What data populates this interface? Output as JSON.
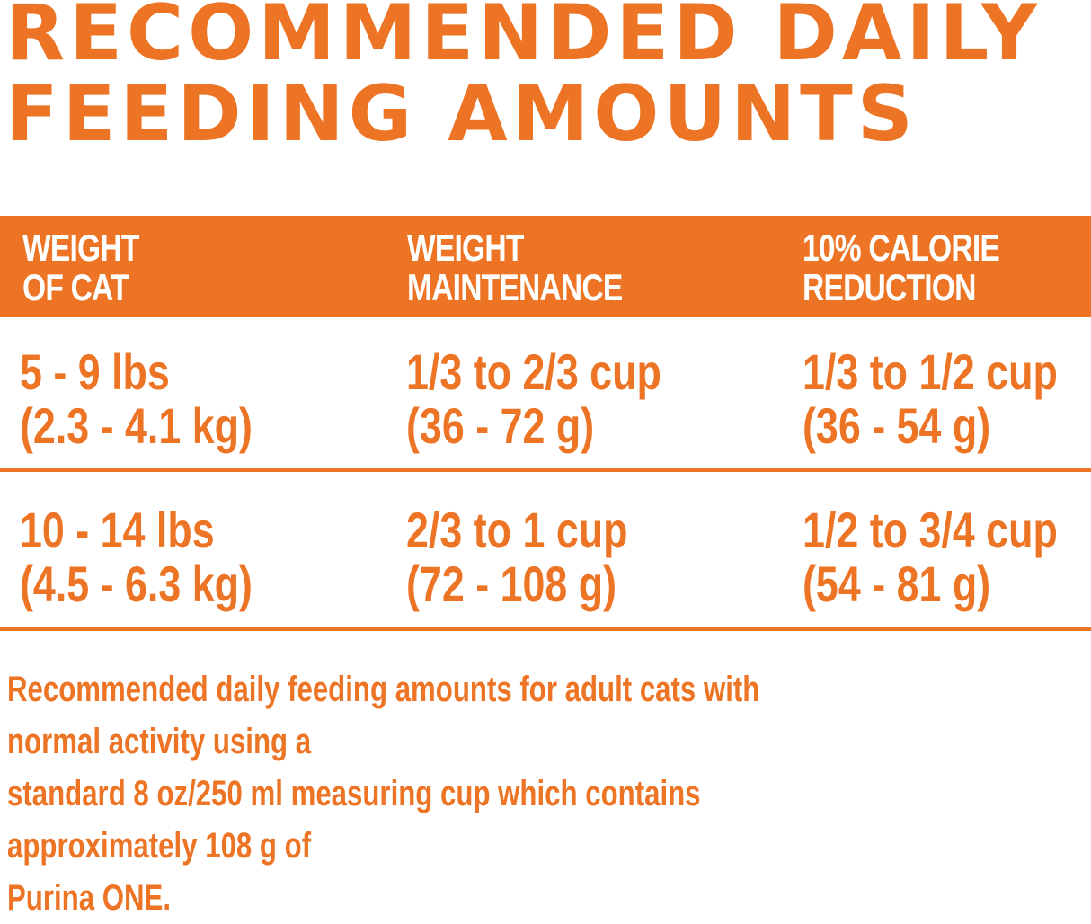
{
  "title": {
    "line1": "RECOMMENDED DAILY",
    "line2": "FEEDING AMOUNTS"
  },
  "accent_color": "#EC7424",
  "table": {
    "headers": [
      {
        "line1": "WEIGHT",
        "line2": "OF CAT"
      },
      {
        "line1": "WEIGHT",
        "line2": "MAINTENANCE"
      },
      {
        "line1": "10% CALORIE",
        "line2": "REDUCTION"
      }
    ],
    "rows": [
      [
        {
          "line1": "5 - 9 lbs",
          "line2": "(2.3 - 4.1 kg)"
        },
        {
          "line1": "1/3 to 2/3 cup",
          "line2": "(36 - 72 g)"
        },
        {
          "line1": "1/3 to 1/2 cup",
          "line2": "(36 - 54 g)"
        }
      ],
      [
        {
          "line1": "10 - 14 lbs",
          "line2": "(4.5 - 6.3 kg)"
        },
        {
          "line1": "2/3 to 1 cup",
          "line2": "(72 - 108 g)"
        },
        {
          "line1": "1/2 to 3/4 cup",
          "line2": "(54 - 81 g)"
        }
      ]
    ]
  },
  "footnote": {
    "line1": "Recommended daily feeding amounts for adult cats with normal activity using a",
    "line2": "standard 8 oz/250 ml measuring cup which contains approximately 108 g of",
    "line3": "Purina ONE."
  }
}
